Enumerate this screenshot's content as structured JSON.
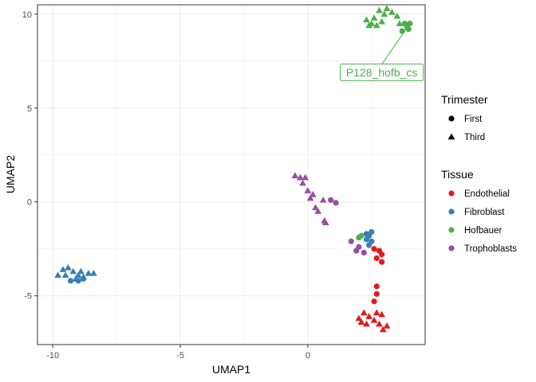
{
  "chart_data": {
    "type": "scatter",
    "xlabel": "UMAP1",
    "ylabel": "UMAP2",
    "xlim": [
      -10.6,
      4.6
    ],
    "ylim": [
      -7.6,
      10.5
    ],
    "x_ticks": [
      -10,
      -5,
      0
    ],
    "y_ticks": [
      -5,
      0,
      5,
      10
    ],
    "grid": true,
    "legend_position": "right",
    "colors": {
      "Endothelial": "#e41a1c",
      "Fibroblast": "#377eb8",
      "Hofbauer": "#4daf4a",
      "Trophoblasts": "#984ea3"
    },
    "legends": [
      {
        "title": "Trimester",
        "kind": "shape",
        "items": [
          {
            "label": "First",
            "shape": "circle"
          },
          {
            "label": "Third",
            "shape": "triangle"
          }
        ]
      },
      {
        "title": "Tissue",
        "kind": "color",
        "items": [
          {
            "label": "Endothelial",
            "color": "#e41a1c"
          },
          {
            "label": "Fibroblast",
            "color": "#377eb8"
          },
          {
            "label": "Hofbauer",
            "color": "#4daf4a"
          },
          {
            "label": "Trophoblasts",
            "color": "#984ea3"
          }
        ]
      }
    ],
    "annotation": {
      "text": "P128_hofb_cs",
      "color": "#4daf4a",
      "point": [
        3.9,
        9.3
      ],
      "label_at": [
        2.9,
        6.9
      ]
    },
    "points": [
      {
        "x": -9.6,
        "y": -3.6,
        "trimester": "Third",
        "tissue": "Fibroblast"
      },
      {
        "x": -9.4,
        "y": -3.5,
        "trimester": "Third",
        "tissue": "Fibroblast"
      },
      {
        "x": -9.8,
        "y": -3.9,
        "trimester": "Third",
        "tissue": "Fibroblast"
      },
      {
        "x": -9.2,
        "y": -3.7,
        "trimester": "Third",
        "tissue": "Fibroblast"
      },
      {
        "x": -9.0,
        "y": -3.9,
        "trimester": "Third",
        "tissue": "Fibroblast"
      },
      {
        "x": -8.8,
        "y": -4.0,
        "trimester": "Third",
        "tissue": "Fibroblast"
      },
      {
        "x": -8.6,
        "y": -3.8,
        "trimester": "Third",
        "tissue": "Fibroblast"
      },
      {
        "x": -8.4,
        "y": -3.8,
        "trimester": "Third",
        "tissue": "Fibroblast"
      },
      {
        "x": -9.5,
        "y": -3.9,
        "trimester": "Third",
        "tissue": "Fibroblast"
      },
      {
        "x": -9.1,
        "y": -4.1,
        "trimester": "Third",
        "tissue": "Fibroblast"
      },
      {
        "x": -8.9,
        "y": -3.7,
        "trimester": "Third",
        "tissue": "Fibroblast"
      },
      {
        "x": -9.3,
        "y": -4.2,
        "trimester": "First",
        "tissue": "Fibroblast"
      },
      {
        "x": -8.8,
        "y": -4.1,
        "trimester": "First",
        "tissue": "Fibroblast"
      },
      {
        "x": -9.0,
        "y": -4.2,
        "trimester": "First",
        "tissue": "Fibroblast"
      },
      {
        "x": 2.3,
        "y": 9.7,
        "trimester": "Third",
        "tissue": "Hofbauer"
      },
      {
        "x": 2.5,
        "y": 9.5,
        "trimester": "Third",
        "tissue": "Hofbauer"
      },
      {
        "x": 2.6,
        "y": 9.8,
        "trimester": "Third",
        "tissue": "Hofbauer"
      },
      {
        "x": 2.8,
        "y": 10.2,
        "trimester": "Third",
        "tissue": "Hofbauer"
      },
      {
        "x": 3.0,
        "y": 10.0,
        "trimester": "Third",
        "tissue": "Hofbauer"
      },
      {
        "x": 3.1,
        "y": 10.3,
        "trimester": "Third",
        "tissue": "Hofbauer"
      },
      {
        "x": 3.3,
        "y": 10.1,
        "trimester": "Third",
        "tissue": "Hofbauer"
      },
      {
        "x": 3.5,
        "y": 9.9,
        "trimester": "Third",
        "tissue": "Hofbauer"
      },
      {
        "x": 2.9,
        "y": 9.6,
        "trimester": "Third",
        "tissue": "Hofbauer"
      },
      {
        "x": 2.4,
        "y": 9.4,
        "trimester": "Third",
        "tissue": "Hofbauer"
      },
      {
        "x": 3.6,
        "y": 9.5,
        "trimester": "Third",
        "tissue": "Hofbauer"
      },
      {
        "x": 2.7,
        "y": 9.4,
        "trimester": "Third",
        "tissue": "Hofbauer"
      },
      {
        "x": 3.8,
        "y": 9.5,
        "trimester": "First",
        "tissue": "Hofbauer"
      },
      {
        "x": 3.9,
        "y": 9.3,
        "trimester": "First",
        "tissue": "Hofbauer"
      },
      {
        "x": 4.0,
        "y": 9.5,
        "trimester": "First",
        "tissue": "Hofbauer"
      },
      {
        "x": 3.7,
        "y": 9.1,
        "trimester": "First",
        "tissue": "Hofbauer"
      },
      {
        "x": 3.95,
        "y": 9.2,
        "trimester": "First",
        "tissue": "Hofbauer"
      },
      {
        "x": -0.5,
        "y": 1.4,
        "trimester": "Third",
        "tissue": "Trophoblasts"
      },
      {
        "x": -0.3,
        "y": 1.3,
        "trimester": "Third",
        "tissue": "Trophoblasts"
      },
      {
        "x": -0.2,
        "y": 1.0,
        "trimester": "Third",
        "tissue": "Trophoblasts"
      },
      {
        "x": -0.1,
        "y": 1.3,
        "trimester": "Third",
        "tissue": "Trophoblasts"
      },
      {
        "x": 0.0,
        "y": 0.6,
        "trimester": "Third",
        "tissue": "Trophoblasts"
      },
      {
        "x": 0.1,
        "y": 0.2,
        "trimester": "Third",
        "tissue": "Trophoblasts"
      },
      {
        "x": 0.2,
        "y": 0.4,
        "trimester": "Third",
        "tissue": "Trophoblasts"
      },
      {
        "x": 0.3,
        "y": -0.3,
        "trimester": "Third",
        "tissue": "Trophoblasts"
      },
      {
        "x": 0.4,
        "y": -0.5,
        "trimester": "Third",
        "tissue": "Trophoblasts"
      },
      {
        "x": 0.6,
        "y": 0.1,
        "trimester": "Third",
        "tissue": "Trophoblasts"
      },
      {
        "x": 0.7,
        "y": -1.1,
        "trimester": "Third",
        "tissue": "Trophoblasts"
      },
      {
        "x": 0.65,
        "y": -1.0,
        "trimester": "Third",
        "tissue": "Trophoblasts"
      },
      {
        "x": 0.9,
        "y": 0.1,
        "trimester": "First",
        "tissue": "Trophoblasts"
      },
      {
        "x": 1.1,
        "y": -0.05,
        "trimester": "First",
        "tissue": "Trophoblasts"
      },
      {
        "x": 1.7,
        "y": -2.1,
        "trimester": "First",
        "tissue": "Trophoblasts"
      },
      {
        "x": 2.0,
        "y": -2.4,
        "trimester": "First",
        "tissue": "Trophoblasts"
      },
      {
        "x": 2.2,
        "y": -2.7,
        "trimester": "First",
        "tissue": "Trophoblasts"
      },
      {
        "x": 1.9,
        "y": -2.6,
        "trimester": "First",
        "tissue": "Trophoblasts"
      },
      {
        "x": 2.1,
        "y": -1.8,
        "trimester": "First",
        "tissue": "Hofbauer"
      },
      {
        "x": 2.0,
        "y": -1.9,
        "trimester": "First",
        "tissue": "Hofbauer"
      },
      {
        "x": 2.3,
        "y": -1.7,
        "trimester": "First",
        "tissue": "Fibroblast"
      },
      {
        "x": 2.4,
        "y": -1.8,
        "trimester": "First",
        "tissue": "Fibroblast"
      },
      {
        "x": 2.5,
        "y": -1.6,
        "trimester": "First",
        "tissue": "Fibroblast"
      },
      {
        "x": 2.3,
        "y": -2.0,
        "trimester": "First",
        "tissue": "Fibroblast"
      },
      {
        "x": 2.5,
        "y": -2.1,
        "trimester": "First",
        "tissue": "Fibroblast"
      },
      {
        "x": 2.4,
        "y": -2.3,
        "trimester": "First",
        "tissue": "Fibroblast"
      },
      {
        "x": 2.6,
        "y": -2.5,
        "trimester": "First",
        "tissue": "Endothelial"
      },
      {
        "x": 2.8,
        "y": -2.6,
        "trimester": "First",
        "tissue": "Endothelial"
      },
      {
        "x": 2.9,
        "y": -2.8,
        "trimester": "First",
        "tissue": "Endothelial"
      },
      {
        "x": 2.7,
        "y": -3.0,
        "trimester": "First",
        "tissue": "Endothelial"
      },
      {
        "x": 2.9,
        "y": -3.2,
        "trimester": "First",
        "tissue": "Endothelial"
      },
      {
        "x": 2.7,
        "y": -4.5,
        "trimester": "First",
        "tissue": "Endothelial"
      },
      {
        "x": 2.7,
        "y": -4.9,
        "trimester": "First",
        "tissue": "Endothelial"
      },
      {
        "x": 2.6,
        "y": -5.3,
        "trimester": "First",
        "tissue": "Endothelial"
      },
      {
        "x": 2.2,
        "y": -5.9,
        "trimester": "Third",
        "tissue": "Endothelial"
      },
      {
        "x": 2.4,
        "y": -6.1,
        "trimester": "Third",
        "tissue": "Endothelial"
      },
      {
        "x": 2.1,
        "y": -6.4,
        "trimester": "Third",
        "tissue": "Endothelial"
      },
      {
        "x": 2.3,
        "y": -6.5,
        "trimester": "Third",
        "tissue": "Endothelial"
      },
      {
        "x": 2.6,
        "y": -6.3,
        "trimester": "Third",
        "tissue": "Endothelial"
      },
      {
        "x": 2.7,
        "y": -5.9,
        "trimester": "Third",
        "tissue": "Endothelial"
      },
      {
        "x": 2.9,
        "y": -6.0,
        "trimester": "Third",
        "tissue": "Endothelial"
      },
      {
        "x": 2.8,
        "y": -6.5,
        "trimester": "Third",
        "tissue": "Endothelial"
      },
      {
        "x": 2.95,
        "y": -6.8,
        "trimester": "Third",
        "tissue": "Endothelial"
      },
      {
        "x": 3.1,
        "y": -6.6,
        "trimester": "Third",
        "tissue": "Endothelial"
      },
      {
        "x": 2.0,
        "y": -6.2,
        "trimester": "Third",
        "tissue": "Endothelial"
      }
    ]
  }
}
